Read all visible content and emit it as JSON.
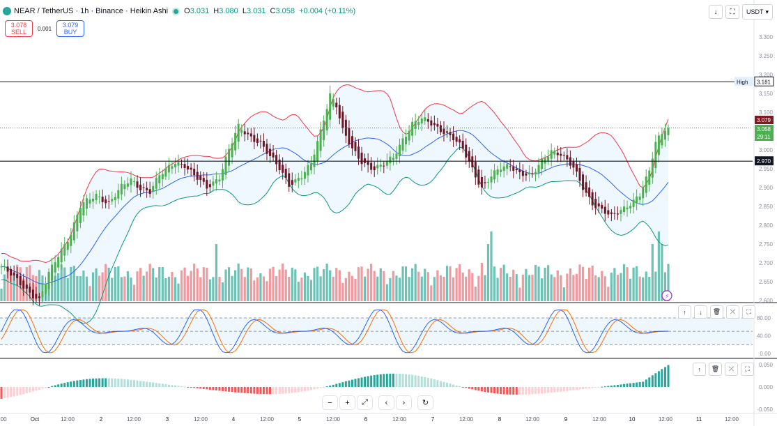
{
  "header": {
    "symbol": "NEAR / TetherUS · 1h · Binance · Heikin Ashi",
    "o_label": "O",
    "o_value": "3.031",
    "h_label": "H",
    "h_value": "3.080",
    "l_label": "L",
    "l_value": "3.031",
    "c_label": "C",
    "c_value": "3.058",
    "change": "+0.004 (+0.11%)"
  },
  "trade": {
    "sell_price": "3.078",
    "sell_label": "SELL",
    "spread": "0.001",
    "buy_price": "3.079",
    "buy_label": "BUY"
  },
  "controls": {
    "currency": "USDT",
    "currency_icon": "chevron-down-icon",
    "arrow_icon": "arrow-down-icon",
    "fullscreen_icon": "maximize-icon"
  },
  "colors": {
    "bull": "#089981",
    "bear": "#800000",
    "bull_candle": "#4caf50",
    "bear_candle": "#6d1524",
    "bb_upper": "#f23645",
    "bb_lower": "#089981",
    "bb_basis": "#2962ff",
    "bb_fill": "#2196f3",
    "vol_bull": "#6dc2b5",
    "vol_bear": "#f0999e",
    "stoch_k": "#2962ff",
    "stoch_d": "#ff6d00",
    "macd_pos_strong": "#26a69a",
    "macd_pos_weak": "#b2dfdb",
    "macd_neg_strong": "#ff5252",
    "macd_neg_weak": "#ffcdd2"
  },
  "chart_data": {
    "type": "candlestick",
    "price_axis": {
      "ticks": [
        "3.300",
        "3.250",
        "3.200",
        "3.150",
        "3.100",
        "3.050",
        "3.000",
        "2.950",
        "2.900",
        "2.850",
        "2.800",
        "2.750",
        "2.700",
        "2.650",
        "2.600"
      ],
      "range": [
        2.6,
        3.35
      ]
    },
    "x_labels": [
      ":00",
      "Oct",
      "12:00",
      "2",
      "12:00",
      "3",
      "12:00",
      "4",
      "12:00",
      "5",
      "12:00",
      "6",
      "12:00",
      "7",
      "12:00",
      "8",
      "12:00",
      "9",
      "12:00",
      "10",
      "12:00",
      "11",
      "12:00"
    ],
    "high_line": {
      "label": "High",
      "value": 3.181,
      "text": "3.181"
    },
    "level_line": {
      "value": 2.97,
      "text": "2.970"
    },
    "last_price_labels": {
      "ask": "3.079",
      "last": "3.058",
      "countdown": "29:11"
    },
    "close_path": [
      [
        0,
        2.69
      ],
      [
        8,
        2.63
      ],
      [
        12,
        2.6
      ],
      [
        15,
        2.67
      ],
      [
        18,
        2.72
      ],
      [
        22,
        2.78
      ],
      [
        25,
        2.85
      ],
      [
        30,
        2.88
      ],
      [
        34,
        2.86
      ],
      [
        38,
        2.9
      ],
      [
        41,
        2.92
      ],
      [
        44,
        2.9
      ],
      [
        47,
        2.89
      ],
      [
        50,
        2.93
      ],
      [
        55,
        2.97
      ],
      [
        58,
        2.96
      ],
      [
        61,
        2.93
      ],
      [
        65,
        2.9
      ],
      [
        69,
        2.93
      ],
      [
        72,
        3.0
      ],
      [
        75,
        3.06
      ],
      [
        78,
        3.04
      ],
      [
        82,
        3.02
      ],
      [
        85,
        2.98
      ],
      [
        88,
        2.95
      ],
      [
        91,
        2.91
      ],
      [
        95,
        2.93
      ],
      [
        98,
        2.96
      ],
      [
        101,
        3.05
      ],
      [
        104,
        3.15
      ],
      [
        106,
        3.12
      ],
      [
        108,
        3.05
      ],
      [
        111,
        3.0
      ],
      [
        114,
        2.97
      ],
      [
        118,
        2.95
      ],
      [
        121,
        2.96
      ],
      [
        124,
        2.98
      ],
      [
        127,
        3.03
      ],
      [
        130,
        3.07
      ],
      [
        133,
        3.08
      ],
      [
        136,
        3.07
      ],
      [
        140,
        3.05
      ],
      [
        143,
        3.03
      ],
      [
        146,
        3.0
      ],
      [
        149,
        2.95
      ],
      [
        152,
        2.9
      ],
      [
        155,
        2.93
      ],
      [
        158,
        2.95
      ],
      [
        161,
        2.96
      ],
      [
        164,
        2.94
      ],
      [
        168,
        2.93
      ],
      [
        171,
        2.97
      ],
      [
        174,
        3.0
      ],
      [
        177,
        2.99
      ],
      [
        181,
        2.95
      ],
      [
        184,
        2.9
      ],
      [
        187,
        2.86
      ],
      [
        190,
        2.84
      ],
      [
        193,
        2.82
      ],
      [
        196,
        2.84
      ],
      [
        199,
        2.86
      ],
      [
        202,
        2.88
      ],
      [
        205,
        2.94
      ],
      [
        207,
        3.02
      ],
      [
        210,
        3.06
      ],
      [
        211,
        3.058
      ]
    ],
    "stoch": {
      "ticks": [
        "80.00",
        "40.00",
        "0.00"
      ],
      "band": [
        20,
        80
      ],
      "mid": 50
    },
    "macd": {
      "ticks": [
        "0.050",
        "0.000",
        "-0.050"
      ]
    }
  }
}
